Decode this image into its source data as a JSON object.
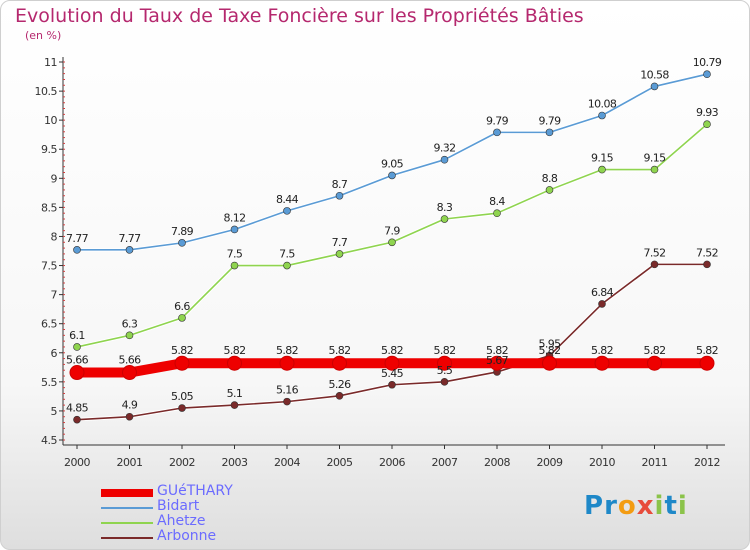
{
  "title": "Evolution du Taux de Taxe Foncière sur les Propriétés Bâties",
  "subtitle": "(en %)",
  "logo": {
    "letters": [
      "P",
      "r",
      "o",
      "x",
      "i",
      "t",
      "i"
    ]
  },
  "chart_data": {
    "type": "line",
    "x": [
      "2000",
      "2001",
      "2002",
      "2003",
      "2004",
      "2005",
      "2006",
      "2007",
      "2008",
      "2009",
      "2010",
      "2011",
      "2012"
    ],
    "ylim": [
      4.5,
      11
    ],
    "yticks": [
      "4.5",
      "5",
      "5.5",
      "6",
      "6.5",
      "7",
      "7.5",
      "8",
      "8.5",
      "9",
      "9.5",
      "10",
      "10.5",
      "11"
    ],
    "grid": false,
    "legend_position": "bottom-left",
    "series": [
      {
        "name": "GUéTHARY",
        "color": "#ee0000",
        "values": [
          5.66,
          5.66,
          5.82,
          5.82,
          5.82,
          5.82,
          5.82,
          5.82,
          5.82,
          5.82,
          5.82,
          5.82,
          5.82
        ],
        "labels": [
          "5.66",
          "5.66",
          "5.82",
          "5.82",
          "5.82",
          "5.82",
          "5.82",
          "5.82",
          "5.82",
          "5.82",
          "5.82",
          "5.82",
          "5.82"
        ]
      },
      {
        "name": "Bidart",
        "color": "#5a9bd5",
        "values": [
          7.77,
          7.77,
          7.89,
          8.12,
          8.44,
          8.7,
          9.05,
          9.32,
          9.79,
          9.79,
          10.08,
          10.58,
          10.79
        ],
        "labels": [
          "7.77",
          "7.77",
          "7.89",
          "8.12",
          "8.44",
          "8.7",
          "9.05",
          "9.32",
          "9.79",
          "9.79",
          "10.08",
          "10.58",
          "10.79"
        ]
      },
      {
        "name": "Ahetze",
        "color": "#8fd44f",
        "values": [
          6.1,
          6.3,
          6.6,
          7.5,
          7.5,
          7.7,
          7.9,
          8.3,
          8.4,
          8.8,
          9.15,
          9.15,
          9.93
        ],
        "labels": [
          "6.1",
          "6.3",
          "6.6",
          "7.5",
          "7.5",
          "7.7",
          "7.9",
          "8.3",
          "8.4",
          "8.8",
          "9.15",
          "9.15",
          "9.93"
        ]
      },
      {
        "name": "Arbonne",
        "color": "#7a2a2a",
        "values": [
          4.85,
          4.9,
          5.05,
          5.1,
          5.16,
          5.26,
          5.45,
          5.5,
          5.67,
          5.95,
          6.84,
          7.52,
          7.52
        ],
        "labels": [
          "4.85",
          "4.9",
          "5.05",
          "5.1",
          "5.16",
          "5.26",
          "5.45",
          "5.5",
          "5.67",
          "5.95",
          "6.84",
          "7.52",
          "7.52"
        ]
      }
    ]
  }
}
